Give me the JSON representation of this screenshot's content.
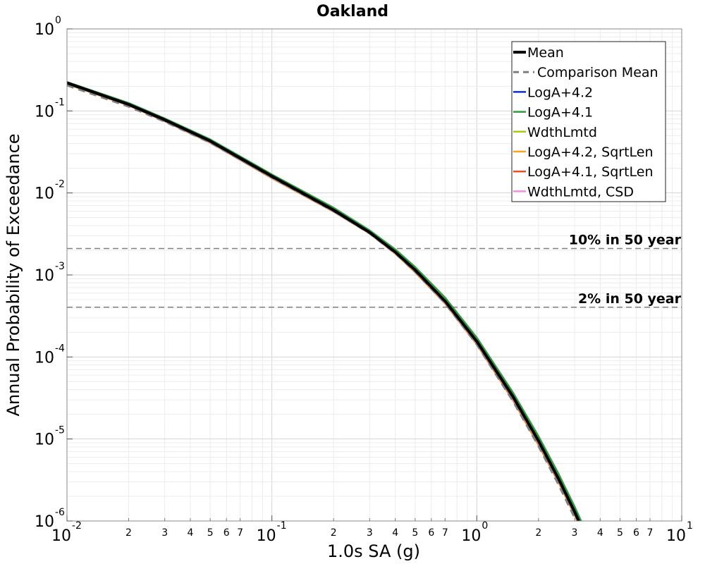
{
  "chart_data": {
    "type": "line",
    "title": "Oakland",
    "xlabel": "1.0s SA (g)",
    "ylabel": "Annual Probability of Exceedance",
    "xscale": "log",
    "yscale": "log",
    "xlim": [
      0.01,
      10
    ],
    "ylim": [
      1e-06,
      1
    ],
    "grid": true,
    "legend_position": "top-right",
    "x_major_ticks": [
      {
        "value": 0.01,
        "base": "10",
        "exp": "-2"
      },
      {
        "value": 0.1,
        "base": "10",
        "exp": "-1"
      },
      {
        "value": 1,
        "base": "10",
        "exp": "0"
      },
      {
        "value": 10,
        "base": "10",
        "exp": "1"
      }
    ],
    "y_major_ticks": [
      {
        "value": 1,
        "base": "10",
        "exp": "0"
      },
      {
        "value": 0.1,
        "base": "10",
        "exp": "-1"
      },
      {
        "value": 0.01,
        "base": "10",
        "exp": "-2"
      },
      {
        "value": 0.001,
        "base": "10",
        "exp": "-3"
      },
      {
        "value": 0.0001,
        "base": "10",
        "exp": "-4"
      },
      {
        "value": 1e-05,
        "base": "10",
        "exp": "-5"
      },
      {
        "value": 1e-06,
        "base": "10",
        "exp": "-6"
      }
    ],
    "x_minor_labels": [
      "2",
      "3",
      "4",
      "5",
      "6",
      "7"
    ],
    "reference_lines": [
      {
        "label": "10% in 50 year",
        "y": 0.0021,
        "color": "#808080"
      },
      {
        "label": "2% in 50 year",
        "y": 0.000404,
        "color": "#808080"
      }
    ],
    "series": [
      {
        "name": "Mean",
        "color": "#000000",
        "width": 4,
        "dash": "none",
        "x": [
          0.01,
          0.02,
          0.03,
          0.05,
          0.1,
          0.2,
          0.3,
          0.4,
          0.5,
          0.7,
          1.0,
          1.5,
          2.0,
          2.5,
          3.0,
          3.5
        ],
        "y": [
          0.22,
          0.12,
          0.078,
          0.043,
          0.016,
          0.0062,
          0.0033,
          0.0019,
          0.00115,
          0.00048,
          0.000155,
          3.3e-05,
          9.5e-06,
          3.3e-06,
          1.3e-06,
          5.5e-07
        ]
      },
      {
        "name": "Comparison Mean",
        "color": "#808080",
        "width": 3,
        "dash": "10,7",
        "x": [
          0.01,
          0.02,
          0.03,
          0.05,
          0.1,
          0.2,
          0.3,
          0.4,
          0.5,
          0.7,
          1.0,
          1.5,
          2.0,
          2.5,
          3.0,
          3.5
        ],
        "y": [
          0.205,
          0.113,
          0.074,
          0.041,
          0.0155,
          0.006,
          0.0032,
          0.00183,
          0.0011,
          0.00045,
          0.000142,
          2.9e-05,
          8.2e-06,
          2.8e-06,
          1.1e-06,
          4.6e-07
        ]
      },
      {
        "name": "LogA+4.2",
        "color": "#0a2fd9",
        "width": 2.5,
        "dash": "none",
        "x": [
          0.01,
          0.02,
          0.03,
          0.05,
          0.1,
          0.2,
          0.3,
          0.4,
          0.5,
          0.7,
          1.0,
          1.5,
          2.0,
          2.5,
          3.0,
          3.5
        ],
        "y": [
          0.215,
          0.118,
          0.076,
          0.042,
          0.0155,
          0.006,
          0.00325,
          0.00187,
          0.00113,
          0.00047,
          0.00015,
          3.2e-05,
          9.2e-06,
          3.2e-06,
          1.25e-06,
          5.3e-07
        ]
      },
      {
        "name": "LogA+4.1",
        "color": "#2e9b3f",
        "width": 2.5,
        "dash": "none",
        "x": [
          0.01,
          0.02,
          0.03,
          0.05,
          0.1,
          0.2,
          0.3,
          0.4,
          0.5,
          0.7,
          1.0,
          1.5,
          2.0,
          2.5,
          3.0,
          3.5
        ],
        "y": [
          0.225,
          0.125,
          0.081,
          0.045,
          0.0168,
          0.0066,
          0.0035,
          0.00205,
          0.00125,
          0.00053,
          0.000172,
          3.7e-05,
          1.08e-05,
          3.8e-06,
          1.5e-06,
          6.4e-07
        ]
      },
      {
        "name": "WdthLmtd",
        "color": "#a8c81a",
        "width": 2.5,
        "dash": "none",
        "x": [
          0.01,
          0.02,
          0.03,
          0.05,
          0.1,
          0.2,
          0.3,
          0.4,
          0.5,
          0.7,
          1.0,
          1.5,
          2.0,
          2.5,
          3.0,
          3.5
        ],
        "y": [
          0.218,
          0.12,
          0.077,
          0.043,
          0.0158,
          0.0061,
          0.0033,
          0.0019,
          0.00115,
          0.00048,
          0.000154,
          3.3e-05,
          9.4e-06,
          3.3e-06,
          1.3e-06,
          5.4e-07
        ]
      },
      {
        "name": "LogA+4.2, SqrtLen",
        "color": "#f5a623",
        "width": 2.5,
        "dash": "none",
        "x": [
          0.01,
          0.02,
          0.03,
          0.05,
          0.1,
          0.2,
          0.3,
          0.4,
          0.5,
          0.7,
          1.0,
          1.5,
          2.0,
          2.5,
          3.0,
          3.5
        ],
        "y": [
          0.212,
          0.116,
          0.075,
          0.041,
          0.0152,
          0.0059,
          0.0032,
          0.00183,
          0.0011,
          0.00046,
          0.000146,
          3.1e-05,
          8.8e-06,
          3.1e-06,
          1.2e-06,
          5e-07
        ]
      },
      {
        "name": "LogA+4.1, SqrtLen",
        "color": "#e8502a",
        "width": 2.5,
        "dash": "none",
        "x": [
          0.01,
          0.02,
          0.03,
          0.05,
          0.1,
          0.2,
          0.3,
          0.4,
          0.5,
          0.7,
          1.0,
          1.5,
          2.0,
          2.5,
          3.0,
          3.5
        ],
        "y": [
          0.213,
          0.117,
          0.075,
          0.041,
          0.0151,
          0.0059,
          0.0032,
          0.00182,
          0.00108,
          0.00045,
          0.000143,
          3e-05,
          8.5e-06,
          3e-06,
          1.18e-06,
          4.9e-07
        ]
      },
      {
        "name": "WdthLmtd, CSD",
        "color": "#f08ee0",
        "width": 2.5,
        "dash": "none",
        "x": [
          0.01,
          0.02,
          0.03,
          0.05,
          0.1,
          0.2,
          0.3,
          0.4,
          0.5,
          0.7,
          1.0,
          1.5,
          2.0,
          2.5,
          3.0,
          3.5
        ],
        "y": [
          0.214,
          0.117,
          0.075,
          0.041,
          0.0153,
          0.006,
          0.0032,
          0.00185,
          0.00112,
          0.00047,
          0.000149,
          3.2e-05,
          9e-06,
          3.1e-06,
          1.22e-06,
          5.1e-07
        ]
      }
    ]
  }
}
